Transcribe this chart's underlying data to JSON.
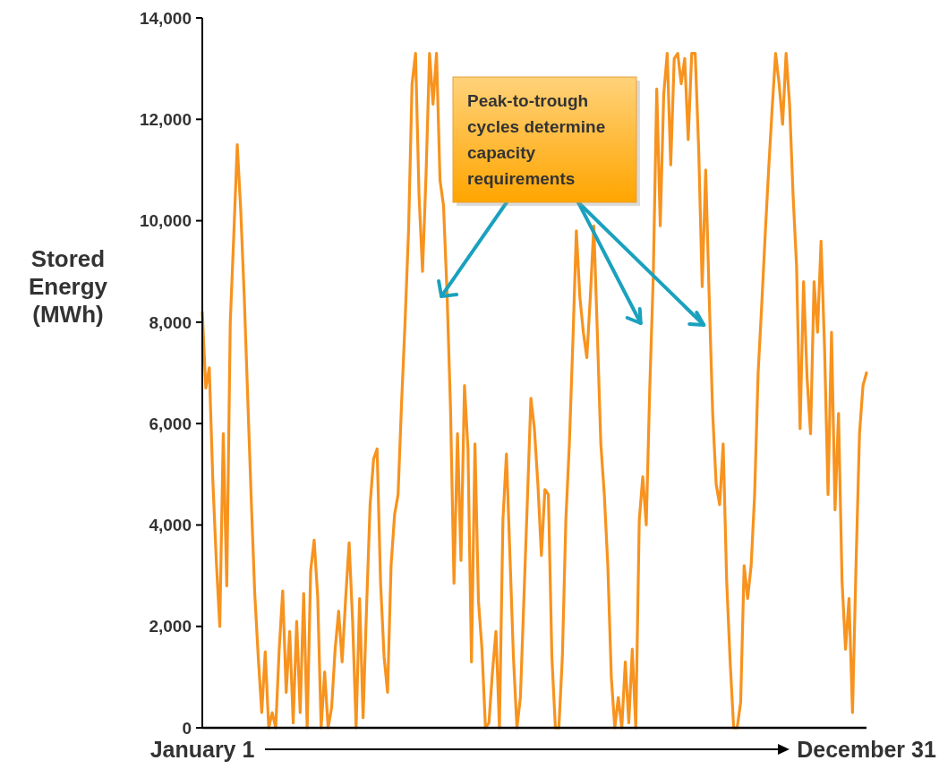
{
  "chart_data": {
    "type": "line",
    "ylabel": "Stored Energy (MWh)",
    "categories": [
      "January 1",
      null,
      null,
      null,
      null,
      null,
      null,
      null,
      null,
      null,
      null,
      null,
      null,
      null,
      null,
      null,
      null,
      null,
      null,
      null,
      null,
      null,
      null,
      null,
      null,
      null,
      null,
      null,
      null,
      null,
      null,
      null,
      null,
      null,
      null,
      null,
      null,
      null,
      null,
      null,
      null,
      null,
      null,
      null,
      null,
      null,
      null,
      null,
      null,
      null,
      null,
      null,
      null,
      null,
      null,
      null,
      null,
      null,
      null,
      null,
      null,
      null,
      null,
      null,
      null,
      null,
      null,
      null,
      null,
      null,
      null,
      null,
      null,
      null,
      null,
      null,
      null,
      null,
      null,
      null,
      null,
      null,
      null,
      null,
      null,
      null,
      null,
      null,
      null,
      null,
      null,
      null,
      null,
      null,
      null,
      null,
      null,
      null,
      null,
      null,
      null,
      null,
      null,
      null,
      null,
      null,
      null,
      null,
      null,
      null,
      null,
      null,
      null,
      null,
      null,
      null,
      null,
      null,
      null,
      null,
      null,
      null,
      null,
      null,
      null,
      null,
      null,
      null,
      null,
      null,
      null,
      null,
      null,
      null,
      null,
      null,
      null,
      null,
      null,
      null,
      null,
      null,
      null,
      null,
      null,
      null,
      null,
      null,
      null,
      null,
      null,
      null,
      null,
      null,
      null,
      null,
      null,
      null,
      null,
      null,
      null,
      null,
      null,
      null,
      null,
      null,
      null,
      null,
      null,
      null,
      null,
      null,
      null,
      null,
      null,
      null,
      null,
      null,
      null,
      null,
      null,
      null,
      null,
      null,
      null,
      null,
      null,
      null,
      null,
      null,
      "December 31"
    ],
    "ylim": [
      0,
      14000
    ],
    "yticks": [
      {
        "value": 0,
        "label": "0"
      },
      {
        "value": 2000,
        "label": "2,000"
      },
      {
        "value": 4000,
        "label": "4,000"
      },
      {
        "value": 6000,
        "label": "6,000"
      },
      {
        "value": 8000,
        "label": "8,000"
      },
      {
        "value": 10000,
        "label": "10,000"
      },
      {
        "value": 12000,
        "label": "12,000"
      },
      {
        "value": 14000,
        "label": "14,000"
      }
    ],
    "grid": false,
    "annotations": [
      "Peak-to-trough cycles determine capacity requirements"
    ],
    "series": [
      {
        "color": "#f7931e",
        "values": [
          8200,
          6700,
          7100,
          4900,
          3300,
          2000,
          5800,
          2800,
          8000,
          9700,
          11500,
          10200,
          8500,
          6500,
          4500,
          2650,
          1400,
          300,
          1500,
          0,
          300,
          0,
          1550,
          2700,
          700,
          1900,
          100,
          2100,
          300,
          2650,
          0,
          3100,
          3700,
          2600,
          0,
          1100,
          0,
          400,
          1550,
          2300,
          1300,
          2550,
          3650,
          2100,
          0,
          2550,
          200,
          2400,
          4400,
          5300,
          5500,
          2850,
          1400,
          700,
          3200,
          4200,
          4600,
          6400,
          8000,
          9800,
          12700,
          13300,
          10500,
          9000,
          10900,
          13300,
          12300,
          13300,
          10800,
          10300,
          8600,
          6300,
          2850,
          5800,
          3300,
          6750,
          5500,
          1300,
          5600,
          2500,
          1550,
          0,
          100,
          1100,
          1900,
          0,
          4100,
          5400,
          3400,
          1400,
          0,
          600,
          2550,
          4500,
          6500,
          5900,
          4800,
          3400,
          4700,
          4600,
          1400,
          0,
          0,
          1400,
          4100,
          5600,
          7600,
          9800,
          8500,
          7800,
          7300,
          8500,
          9900,
          7800,
          5600,
          4600,
          3200,
          1000,
          0,
          600,
          0,
          1300,
          100,
          1550,
          0,
          4100,
          4950,
          4000,
          6700,
          8900,
          12600,
          9900,
          12500,
          13300,
          11100,
          13200,
          13300,
          12700,
          13200,
          11600,
          13300,
          13300,
          11400,
          8700,
          11000,
          8500,
          6200,
          4800,
          4400,
          5600,
          2900,
          1300,
          0,
          0,
          500,
          3200,
          2550,
          3200,
          4600,
          7000,
          8300,
          9700,
          11000,
          12200,
          13300,
          12700,
          11900,
          13300,
          12300,
          10500,
          9100,
          5900,
          8800,
          6900,
          5800,
          8800,
          7800,
          9600,
          7500,
          4600,
          7800,
          4300,
          6200,
          2900,
          1550,
          2550,
          300,
          3200,
          5800,
          6750,
          7000
        ]
      }
    ]
  }
}
